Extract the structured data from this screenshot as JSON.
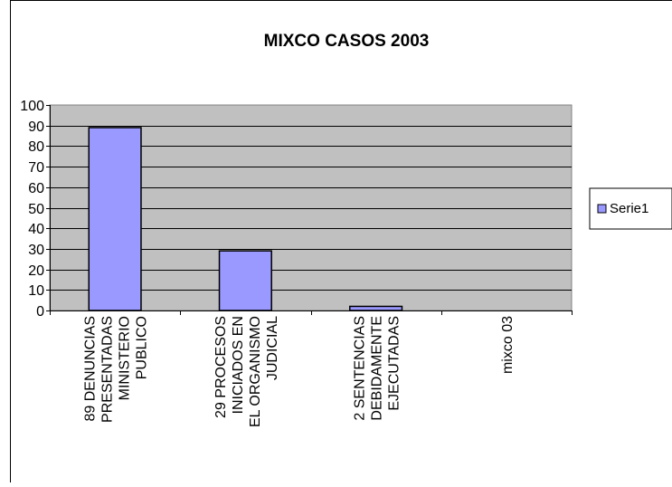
{
  "chart_data": {
    "type": "bar",
    "title": "MIXCO CASOS 2003",
    "categories": [
      [
        "89 DENUNCIAS",
        "PRESENTADAS",
        "MINISTERIO",
        "PUBLICO"
      ],
      [
        "29 PROCESOS",
        "INICIADOS EN",
        "EL ORGANISMO",
        "JUDICIAL"
      ],
      [
        "2 SENTENCIAS",
        "DEBIDAMENTE",
        "EJECUTADAS"
      ],
      [
        "mixco 03"
      ]
    ],
    "series": [
      {
        "name": "Serie1",
        "values": [
          89,
          29,
          2,
          0
        ],
        "color": "#9999ff"
      }
    ],
    "yticks": [
      "0",
      "10",
      "20",
      "30",
      "40",
      "50",
      "60",
      "70",
      "80",
      "90",
      "100"
    ],
    "ylim": [
      0,
      100
    ],
    "grid": true,
    "plot_background": "#c0c0c0",
    "legend_position": "right"
  }
}
